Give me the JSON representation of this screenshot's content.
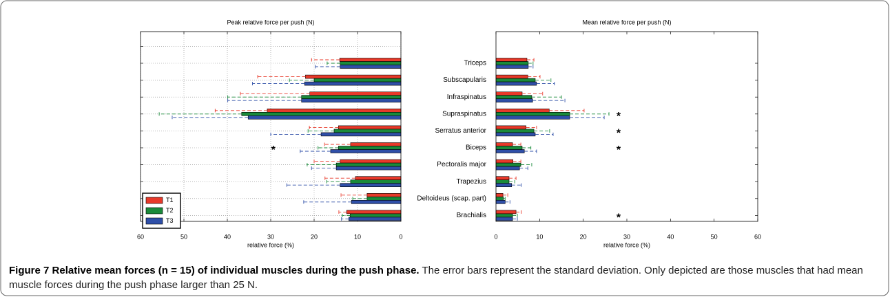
{
  "chart_data": [
    {
      "type": "bar",
      "orientation": "horizontal",
      "title": "Peak relative force per push (N)",
      "xlabel": "relative force (%)",
      "categories": [
        null,
        null,
        null,
        null,
        null,
        null,
        null,
        null,
        null,
        null
      ],
      "xlim": [
        60,
        0
      ],
      "xticks": [
        60,
        50,
        40,
        30,
        20,
        10,
        0
      ],
      "grid": true,
      "legend": "lower left",
      "series": [
        {
          "name": "T1",
          "color": "#e8392a",
          "values": [
            14.1,
            22,
            21,
            30.8,
            14.4,
            11.6,
            14,
            10.5,
            7.8,
            12.5
          ],
          "errors": [
            6.5,
            11,
            16,
            12,
            6.7,
            6,
            6,
            7,
            6,
            1.8
          ]
        },
        {
          "name": "T2",
          "color": "#1a8a3a",
          "values": [
            14,
            20,
            22.9,
            36.7,
            15.4,
            14.4,
            14.9,
            11.6,
            7.8,
            11.7
          ],
          "errors": [
            3,
            5.7,
            17,
            19,
            6,
            4.7,
            6.7,
            5.5,
            3.3,
            1.8
          ]
        },
        {
          "name": "T3",
          "color": "#2f4fa8",
          "values": [
            14,
            22.2,
            22.9,
            35.2,
            18.4,
            16.2,
            14.9,
            14,
            11.4,
            12
          ],
          "errors": [
            5.7,
            12,
            17,
            17.5,
            11.6,
            7,
            5.7,
            12.3,
            11,
            1.7
          ]
        }
      ],
      "annotations": [
        {
          "text": "*",
          "x": 29.4,
          "category_index": 5
        }
      ]
    },
    {
      "type": "bar",
      "orientation": "horizontal",
      "title": "Mean relative force per push (N)",
      "xlabel": "relative force (%)",
      "categories": [
        "Triceps",
        "Subscapularis",
        "Infraspinatus",
        "Supraspinatus",
        "Serratus anterior",
        "Biceps",
        "Pectoralis major",
        "Trapezius",
        "Deltoideus (scap. part)",
        "Brachialis"
      ],
      "xlim": [
        0,
        60
      ],
      "xticks": [
        0,
        10,
        20,
        30,
        40,
        50,
        60
      ],
      "grid": false,
      "series": [
        {
          "color": "#e8392a",
          "values": [
            7.1,
            7.3,
            6,
            12.2,
            6.9,
            3.8,
            3.9,
            3,
            1.6,
            4.6
          ],
          "errors": [
            1.6,
            2.8,
            4.7,
            8,
            2.4,
            1.9,
            1.8,
            1.6,
            1.1,
            1.2
          ]
        },
        {
          "color": "#1a8a3a",
          "values": [
            7.4,
            9,
            8.2,
            16.9,
            8.7,
            6,
            5.7,
            3,
            1.7,
            3.8
          ],
          "errors": [
            1.1,
            3.6,
            6.8,
            9,
            3.6,
            2,
            2.5,
            1.3,
            0.4,
            1.1
          ]
        },
        {
          "color": "#2f4fa8",
          "values": [
            7.4,
            9.3,
            8.4,
            16.9,
            9,
            6.5,
            5.4,
            3.6,
            2.1,
            3.8
          ],
          "errors": [
            1.1,
            4.1,
            7.4,
            7.9,
            4.1,
            2.8,
            1.9,
            2.2,
            1.1,
            1.1
          ]
        }
      ],
      "annotations": [
        {
          "text": "*",
          "x": 28.1,
          "category_index": 3
        },
        {
          "text": "*",
          "x": 28.1,
          "category_index": 4
        },
        {
          "text": "*",
          "x": 28.1,
          "category_index": 5
        },
        {
          "text": "*",
          "x": 28.1,
          "category_index": 9
        }
      ]
    }
  ],
  "caption": {
    "label": "Figure 7",
    "title": "Relative mean forces (n = 15) of individual muscles during the push phase.",
    "text": "The error bars represent the standard deviation. Only depicted are those muscles that had mean muscle forces during the push phase larger than 25 N."
  }
}
